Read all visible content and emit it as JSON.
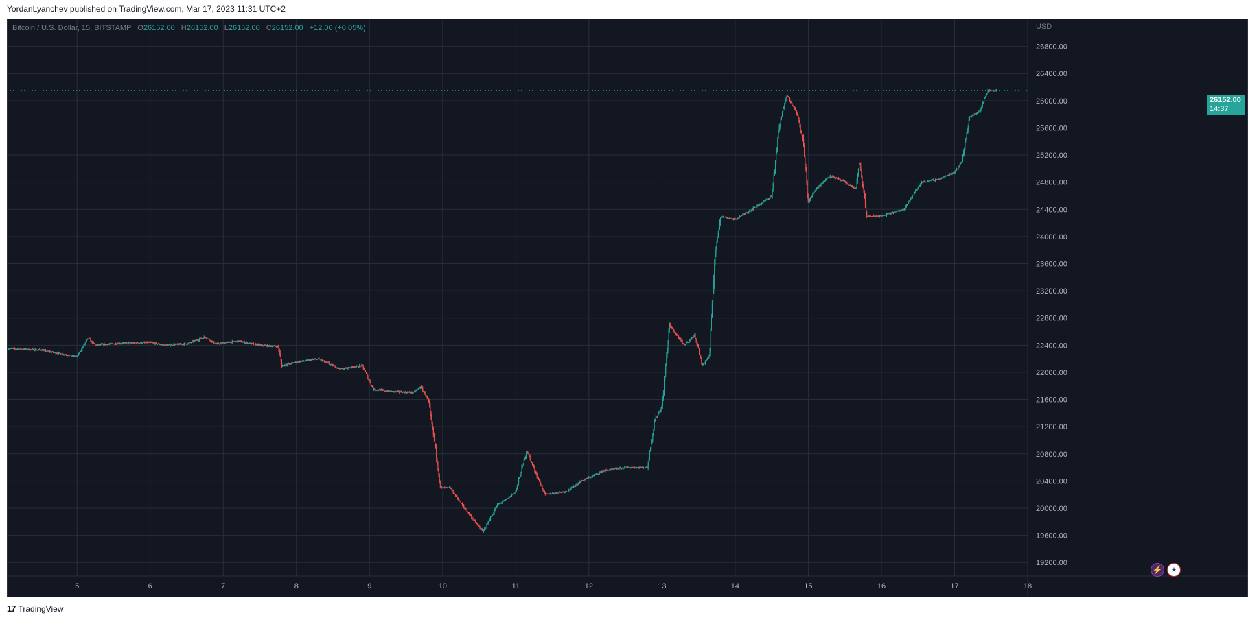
{
  "header": {
    "published_text": "YordanLyanchev published on TradingView.com, Mar 17, 2023 11:31 UTC+2"
  },
  "footer": {
    "logo_glyph": "17",
    "brand": "TradingView"
  },
  "legend": {
    "symbol": "Bitcoin / U.S. Dollar, 15, BITSTAMP",
    "o_label": "O",
    "o_value": "26152.00",
    "h_label": "H",
    "h_value": "26152.00",
    "l_label": "L",
    "l_value": "26152.00",
    "c_label": "C",
    "c_value": "26152.00",
    "change": "+12.00 (+0.05%)"
  },
  "price_tag": {
    "price": "26152.00",
    "countdown": "14:37"
  },
  "icons": {
    "flash": "flash-icon",
    "flag": "us-flag-icon"
  },
  "colors": {
    "background": "#131722",
    "grid": "#2a2e39",
    "up": "#26a69a",
    "down": "#ef5350",
    "axis_text": "#b2b5be"
  },
  "chart_data": {
    "type": "candlestick",
    "symbol": "Bitcoin / U.S. Dollar",
    "interval": "15",
    "exchange": "BITSTAMP",
    "currency": "USD",
    "x_ticks": [
      "5",
      "6",
      "7",
      "8",
      "9",
      "10",
      "11",
      "12",
      "13",
      "14",
      "15",
      "16",
      "17",
      "18"
    ],
    "y_ticks": [
      "26800.00",
      "26400.00",
      "26000.00",
      "25600.00",
      "25200.00",
      "24800.00",
      "24400.00",
      "24000.00",
      "23600.00",
      "23200.00",
      "22800.00",
      "22400.00",
      "22000.00",
      "21600.00",
      "21200.00",
      "20800.00",
      "20400.00",
      "20000.00",
      "19600.00",
      "19200.00"
    ],
    "ylim": [
      19000,
      27200
    ],
    "xlim": [
      4.05,
      18.0
    ],
    "last_price": 26152.0,
    "grid": true,
    "price_path": [
      [
        4.05,
        22350
      ],
      [
        4.5,
        22330
      ],
      [
        4.9,
        22250
      ],
      [
        5.0,
        22230
      ],
      [
        5.15,
        22500
      ],
      [
        5.25,
        22400
      ],
      [
        5.6,
        22430
      ],
      [
        6.0,
        22440
      ],
      [
        6.2,
        22400
      ],
      [
        6.5,
        22420
      ],
      [
        6.75,
        22520
      ],
      [
        6.9,
        22420
      ],
      [
        7.2,
        22460
      ],
      [
        7.5,
        22400
      ],
      [
        7.75,
        22380
      ],
      [
        7.8,
        22100
      ],
      [
        8.0,
        22150
      ],
      [
        8.3,
        22200
      ],
      [
        8.6,
        22050
      ],
      [
        8.9,
        22100
      ],
      [
        9.05,
        21750
      ],
      [
        9.3,
        21720
      ],
      [
        9.6,
        21700
      ],
      [
        9.7,
        21790
      ],
      [
        9.8,
        21600
      ],
      [
        9.9,
        20900
      ],
      [
        9.97,
        20300
      ],
      [
        10.1,
        20300
      ],
      [
        10.3,
        20000
      ],
      [
        10.55,
        19650
      ],
      [
        10.75,
        20050
      ],
      [
        10.9,
        20150
      ],
      [
        11.0,
        20250
      ],
      [
        11.15,
        20850
      ],
      [
        11.3,
        20450
      ],
      [
        11.4,
        20200
      ],
      [
        11.7,
        20250
      ],
      [
        11.9,
        20400
      ],
      [
        12.2,
        20550
      ],
      [
        12.5,
        20600
      ],
      [
        12.8,
        20600
      ],
      [
        12.9,
        21300
      ],
      [
        13.0,
        21500
      ],
      [
        13.1,
        22700
      ],
      [
        13.3,
        22400
      ],
      [
        13.45,
        22550
      ],
      [
        13.55,
        22100
      ],
      [
        13.65,
        22250
      ],
      [
        13.72,
        23700
      ],
      [
        13.8,
        24300
      ],
      [
        14.0,
        24250
      ],
      [
        14.3,
        24450
      ],
      [
        14.5,
        24600
      ],
      [
        14.6,
        25600
      ],
      [
        14.7,
        26100
      ],
      [
        14.85,
        25800
      ],
      [
        14.93,
        25400
      ],
      [
        15.0,
        24500
      ],
      [
        15.1,
        24700
      ],
      [
        15.3,
        24900
      ],
      [
        15.5,
        24800
      ],
      [
        15.65,
        24700
      ],
      [
        15.7,
        25100
      ],
      [
        15.8,
        24300
      ],
      [
        16.0,
        24300
      ],
      [
        16.3,
        24400
      ],
      [
        16.55,
        24800
      ],
      [
        16.8,
        24850
      ],
      [
        17.0,
        24950
      ],
      [
        17.1,
        25100
      ],
      [
        17.2,
        25750
      ],
      [
        17.35,
        25850
      ],
      [
        17.45,
        26150
      ],
      [
        17.58,
        26152
      ]
    ]
  }
}
